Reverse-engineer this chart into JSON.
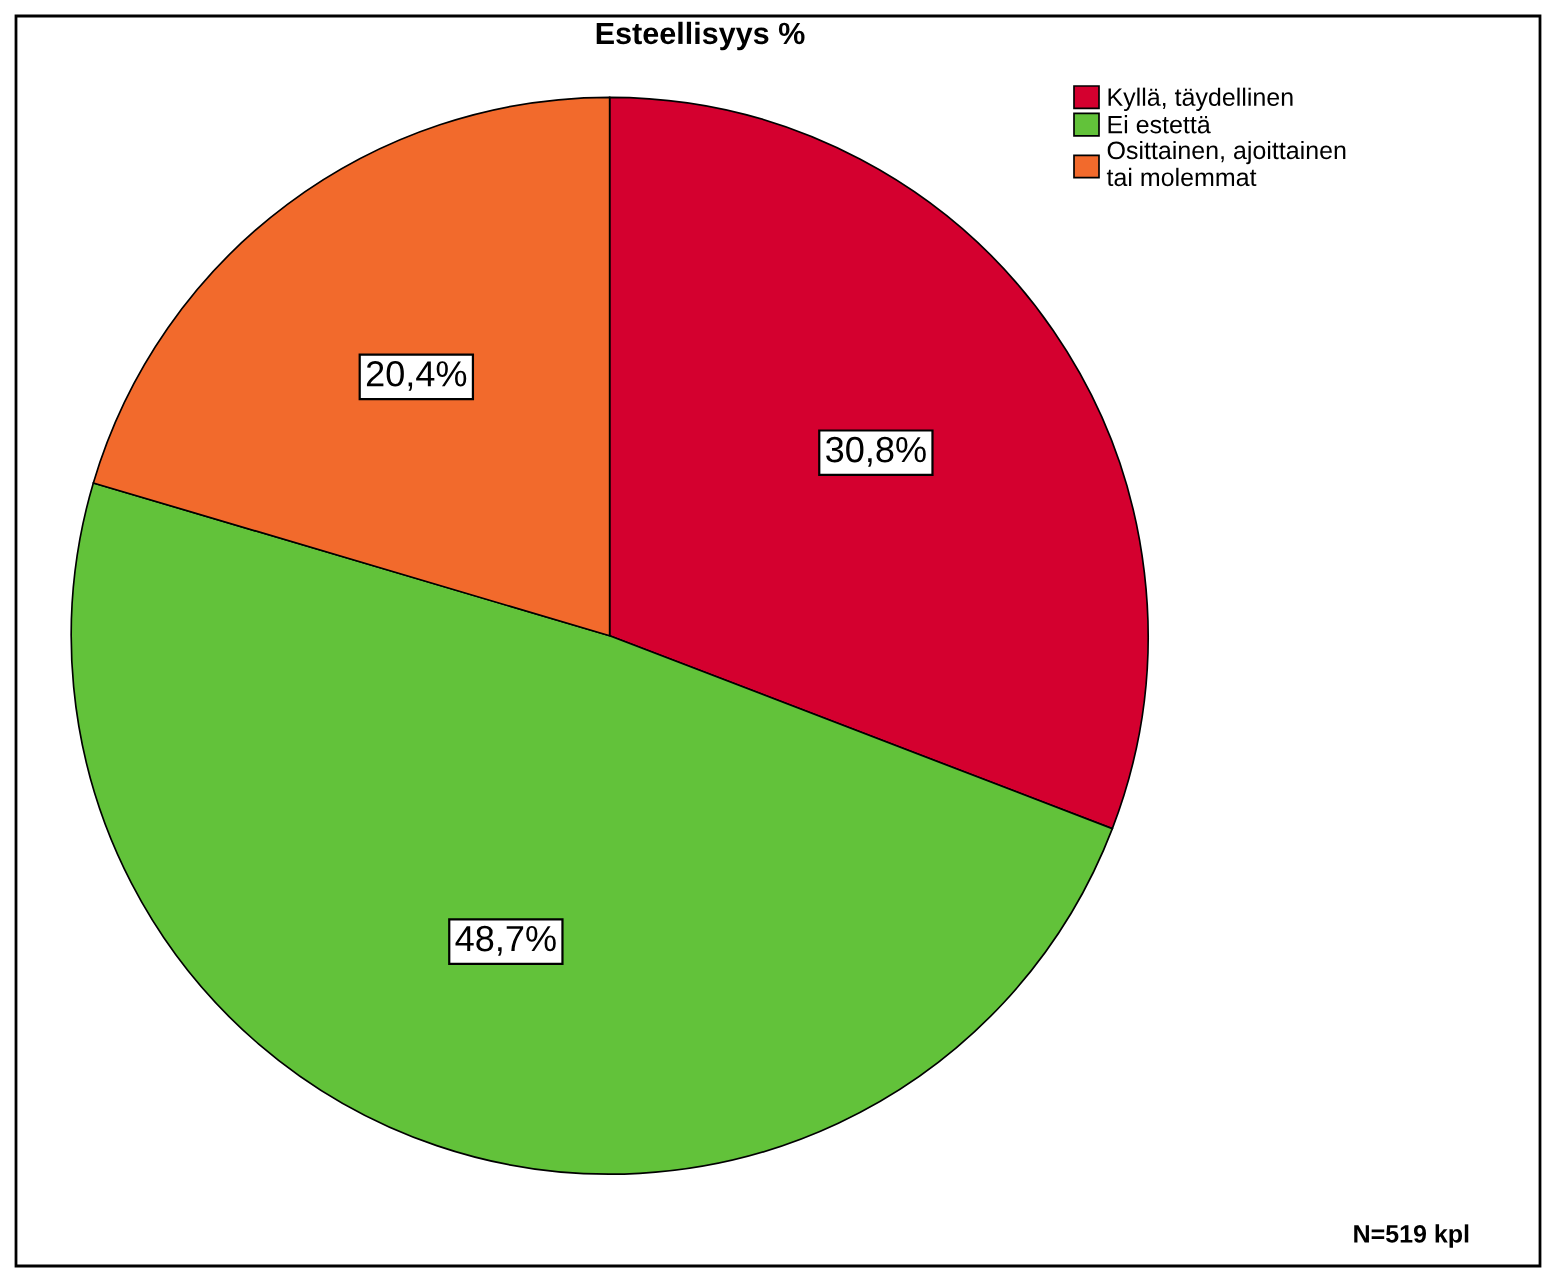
{
  "chart_data": {
    "type": "pie",
    "title": "Esteellisyys %",
    "categories": [
      "Kyllä, täydellinen",
      "Ei estettä",
      "Osittainen, ajoittainen\ntai molemmat"
    ],
    "values": [
      30.8,
      48.7,
      20.4
    ],
    "colors": [
      "#d4002f",
      "#62c23a",
      "#f26a2c"
    ],
    "value_labels": [
      "30,8%",
      "48,7%",
      "20,4%"
    ],
    "legend": "top right",
    "annotations": [
      "N=519 kpl"
    ]
  }
}
